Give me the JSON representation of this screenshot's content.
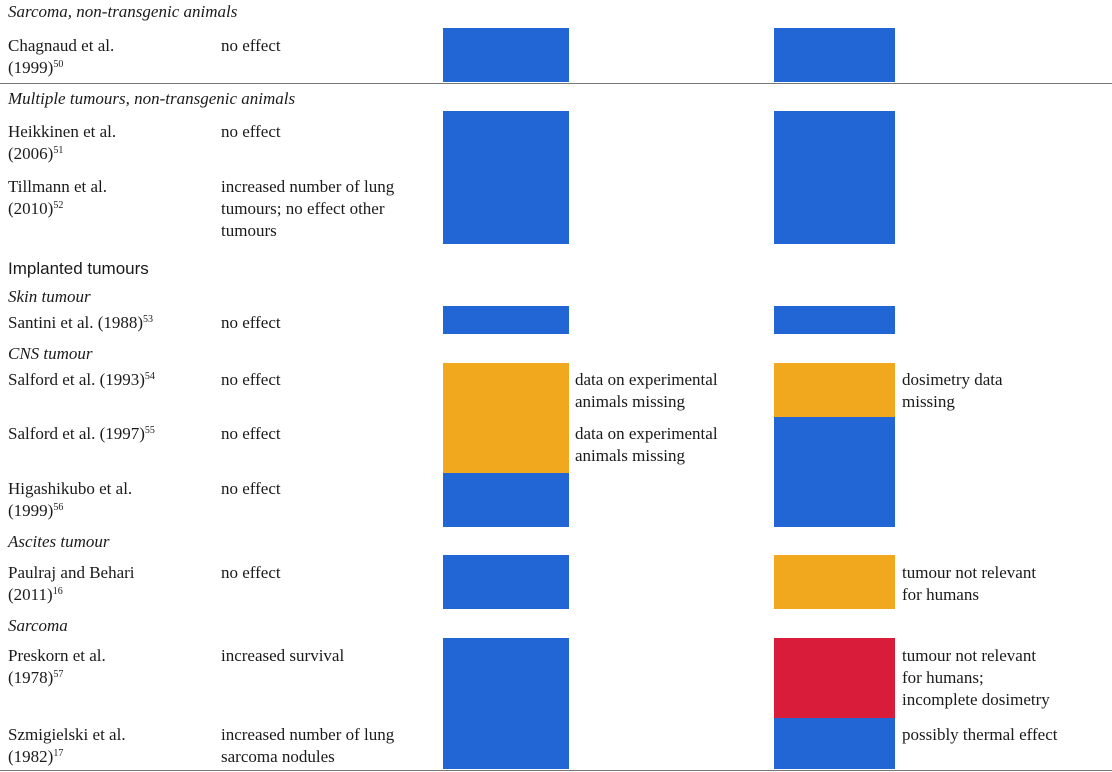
{
  "colors": {
    "blue": "#2166d4",
    "orange": "#f1a81f",
    "red": "#d91c3a"
  },
  "headings": {
    "sarcoma_nontransgenic": "Sarcoma, non-transgenic animals",
    "multiple_nontransgenic": "Multiple tumours, non-transgenic animals",
    "implanted": "Implanted tumours",
    "skin": "Skin tumour",
    "cns": "CNS tumour",
    "ascites": "Ascites tumour",
    "sarcoma": "Sarcoma"
  },
  "studies": {
    "chagnaud": {
      "line1": "Chagnaud et al.",
      "line2": "(1999)",
      "ref": "50",
      "effect": "no effect"
    },
    "heikkinen": {
      "line1": "Heikkinen et al.",
      "line2": "(2006)",
      "ref": "51",
      "effect": "no effect"
    },
    "tillmann": {
      "line1": "Tillmann et al.",
      "line2": "(2010)",
      "ref": "52",
      "effect1": "increased number of lung",
      "effect2": "tumours; no effect other",
      "effect3": "tumours"
    },
    "santini": {
      "line1": "Santini et al. (1988)",
      "ref": "53",
      "effect": "no effect"
    },
    "salford93": {
      "line1": "Salford et al. (1993)",
      "ref": "54",
      "effect": "no effect",
      "note_mid1": "data on experimental",
      "note_mid2": "animals missing",
      "note_right1": "dosimetry data",
      "note_right2": "missing"
    },
    "salford97": {
      "line1": "Salford et al. (1997)",
      "ref": "55",
      "effect": "no effect",
      "note_mid1": "data on experimental",
      "note_mid2": "animals missing"
    },
    "higashikubo": {
      "line1": "Higashikubo et al.",
      "line2": "(1999)",
      "ref": "56",
      "effect": "no effect"
    },
    "paulraj": {
      "line1": "Paulraj and Behari",
      "line2": "(2011)",
      "ref": "16",
      "effect": "no effect",
      "note_right1": "tumour not relevant",
      "note_right2": "for humans"
    },
    "preskorn": {
      "line1": "Preskorn et al.",
      "line2": "(1978)",
      "ref": "57",
      "effect": "increased survival",
      "note_right1": "tumour not relevant",
      "note_right2": "for humans;",
      "note_right3": "incomplete dosimetry"
    },
    "szmigielski": {
      "line1": "Szmigielski et al.",
      "line2": "(1982)",
      "ref": "17",
      "effect1": "increased number of lung",
      "effect2": "sarcoma nodules",
      "note_right1": "possibly thermal effect"
    }
  }
}
